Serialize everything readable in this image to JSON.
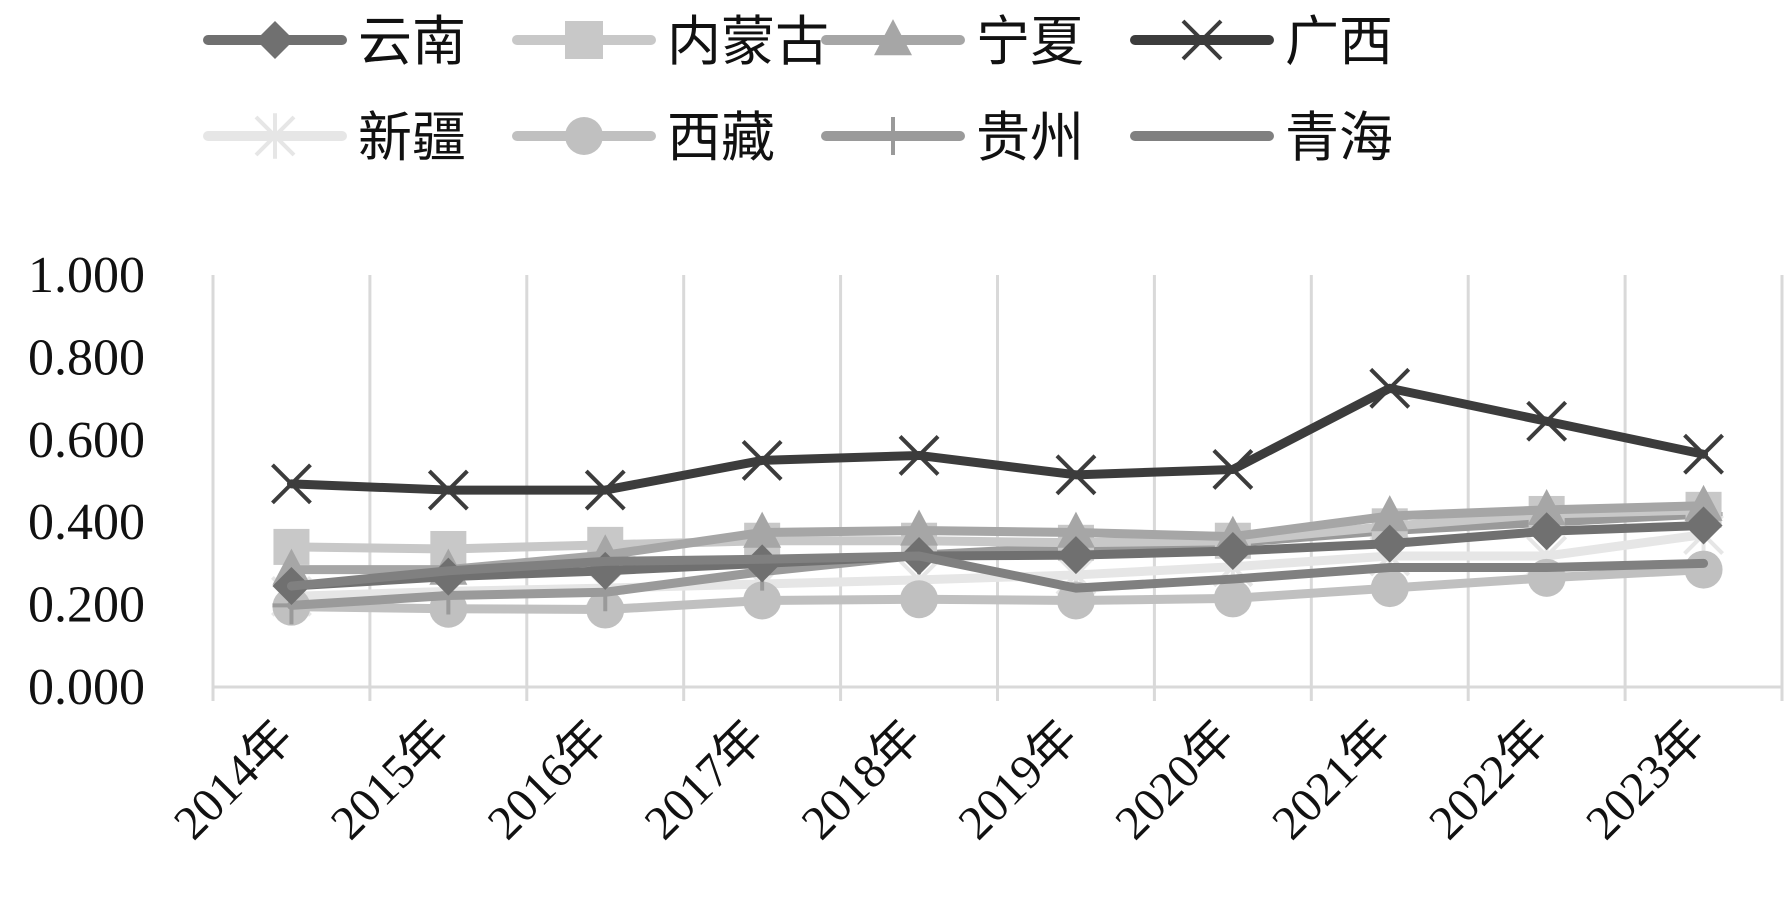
{
  "chart_data": {
    "type": "line",
    "title": "",
    "xlabel": "",
    "ylabel": "",
    "ylim": [
      0,
      1
    ],
    "y_ticks": [
      "0.000",
      "0.200",
      "0.400",
      "0.600",
      "0.800",
      "1.000"
    ],
    "grid": "vertical",
    "legend_position": "top",
    "categories": [
      "2014年",
      "2015年",
      "2016年",
      "2017年",
      "2018年",
      "2019年",
      "2020年",
      "2021年",
      "2022年",
      "2023年"
    ],
    "series": [
      {
        "name": "云南",
        "color": "#707070",
        "marker": "diamond",
        "values": [
          0.245,
          0.268,
          0.282,
          0.3,
          0.318,
          0.32,
          0.33,
          0.348,
          0.378,
          0.392
        ]
      },
      {
        "name": "内蒙古",
        "color": "#c8c8c8",
        "marker": "square",
        "values": [
          0.34,
          0.335,
          0.345,
          0.355,
          0.355,
          0.35,
          0.355,
          0.39,
          0.42,
          0.43
        ]
      },
      {
        "name": "宁夏",
        "color": "#a6a6a6",
        "marker": "triangle",
        "values": [
          0.285,
          0.285,
          0.32,
          0.375,
          0.38,
          0.375,
          0.365,
          0.415,
          0.43,
          0.44
        ]
      },
      {
        "name": "广西",
        "color": "#3c3c3c",
        "marker": "x",
        "values": [
          0.493,
          0.478,
          0.478,
          0.55,
          0.562,
          0.515,
          0.528,
          0.725,
          0.645,
          0.565
        ]
      },
      {
        "name": "新疆",
        "color": "#e6e6e6",
        "marker": "asterisk",
        "values": [
          0.22,
          0.232,
          0.24,
          0.25,
          0.26,
          0.272,
          0.292,
          0.318,
          0.318,
          0.37
        ]
      },
      {
        "name": "西藏",
        "color": "#c0c0c0",
        "marker": "circle",
        "values": [
          0.195,
          0.19,
          0.188,
          0.21,
          0.213,
          0.21,
          0.215,
          0.24,
          0.265,
          0.285
        ]
      },
      {
        "name": "贵州",
        "color": "#9a9a9a",
        "marker": "plus",
        "values": [
          0.198,
          0.222,
          0.23,
          0.28,
          0.32,
          0.34,
          0.35,
          0.38,
          0.4,
          0.42
        ]
      },
      {
        "name": "青海",
        "color": "#808080",
        "marker": "none",
        "values": [
          0.245,
          0.282,
          0.305,
          0.31,
          0.318,
          0.24,
          0.262,
          0.29,
          0.29,
          0.3
        ]
      }
    ]
  }
}
